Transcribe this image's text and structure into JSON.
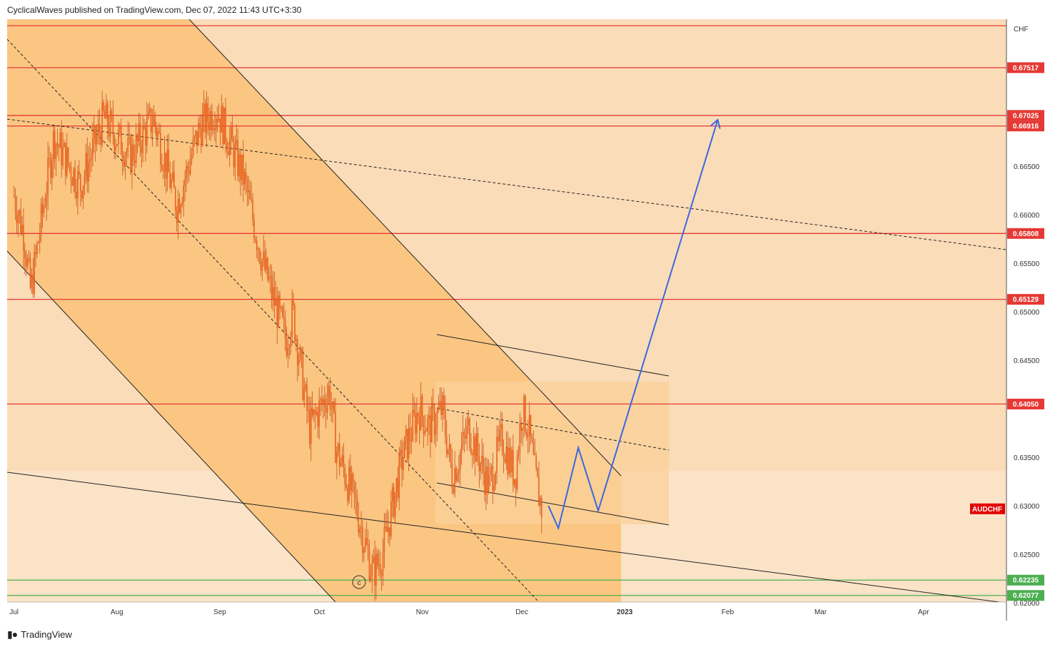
{
  "header": {
    "published_text": "CyclicalWaves published on TradingView.com, Dec 07, 2022 11:43 UTC+3:30"
  },
  "footer": {
    "brand_label": "TradingView",
    "logo_icon": "tradingview-logo-icon"
  },
  "colors": {
    "background": "#fbdcb8",
    "channel_fill": "#fbc682",
    "resistance": "#e53935",
    "support": "#4caf50",
    "projection": "#3a68e0",
    "candle": "#e8621e",
    "symbol_tag": "#e40000"
  },
  "chart_data": {
    "type": "candlestick",
    "symbol": "AUDCHF",
    "currency": "CHF",
    "y_axis": {
      "ticks": [
        "0.66500",
        "0.66000",
        "0.65500",
        "0.65000",
        "0.64500",
        "0.63500",
        "0.63000",
        "0.62500",
        "0.62000"
      ],
      "range": [
        0.6195,
        0.6795
      ]
    },
    "x_axis": {
      "ticks": [
        "Jul",
        "Aug",
        "Sep",
        "Oct",
        "Nov",
        "Dec",
        "2023",
        "Feb",
        "Mar",
        "Apr"
      ]
    },
    "horizontal_levels": [
      {
        "label": "",
        "value": 0.6795,
        "kind": "resistance"
      },
      {
        "label": "0.67517",
        "value": 0.67517,
        "kind": "resistance"
      },
      {
        "label": "0.67025",
        "value": 0.67025,
        "kind": "resistance"
      },
      {
        "label": "0.66916",
        "value": 0.66916,
        "kind": "resistance"
      },
      {
        "label": "0.65808",
        "value": 0.65808,
        "kind": "resistance"
      },
      {
        "label": "0.65129",
        "value": 0.65129,
        "kind": "resistance"
      },
      {
        "label": "0.64050",
        "value": 0.6405,
        "kind": "resistance"
      },
      {
        "label": "0.62235",
        "value": 0.62235,
        "kind": "support"
      },
      {
        "label": "0.62077",
        "value": 0.62077,
        "kind": "support"
      }
    ],
    "last_price_label": "AUDCHF",
    "last_price": 0.6297,
    "wave_marker": "c",
    "projection_path": [
      {
        "date": "2022-12-09",
        "price": 0.63
      },
      {
        "date": "2022-12-12",
        "price": 0.6277
      },
      {
        "date": "2022-12-18",
        "price": 0.636
      },
      {
        "date": "2022-12-24",
        "price": 0.6295
      },
      {
        "date": "2023-01-29",
        "price": 0.6698
      }
    ],
    "price_path": [
      {
        "date": "2022-07-01",
        "price": 0.662
      },
      {
        "date": "2022-07-04",
        "price": 0.658
      },
      {
        "date": "2022-07-06",
        "price": 0.652
      },
      {
        "date": "2022-07-13",
        "price": 0.668
      },
      {
        "date": "2022-07-21",
        "price": 0.663
      },
      {
        "date": "2022-07-28",
        "price": 0.67
      },
      {
        "date": "2022-08-05",
        "price": 0.666
      },
      {
        "date": "2022-08-12",
        "price": 0.67
      },
      {
        "date": "2022-08-19",
        "price": 0.661
      },
      {
        "date": "2022-08-26",
        "price": 0.669
      },
      {
        "date": "2022-08-31",
        "price": 0.671
      },
      {
        "date": "2022-09-08",
        "price": 0.664
      },
      {
        "date": "2022-09-14",
        "price": 0.655
      },
      {
        "date": "2022-09-21",
        "price": 0.647
      },
      {
        "date": "2022-09-23",
        "price": 0.65
      },
      {
        "date": "2022-09-28",
        "price": 0.638
      },
      {
        "date": "2022-10-04",
        "price": 0.642
      },
      {
        "date": "2022-10-06",
        "price": 0.636
      },
      {
        "date": "2022-10-12",
        "price": 0.63
      },
      {
        "date": "2022-10-17",
        "price": 0.623
      },
      {
        "date": "2022-10-20",
        "price": 0.625
      },
      {
        "date": "2022-10-26",
        "price": 0.635
      },
      {
        "date": "2022-10-31",
        "price": 0.64
      },
      {
        "date": "2022-11-03",
        "price": 0.638
      },
      {
        "date": "2022-11-07",
        "price": 0.64
      },
      {
        "date": "2022-11-10",
        "price": 0.633
      },
      {
        "date": "2022-11-15",
        "price": 0.638
      },
      {
        "date": "2022-11-21",
        "price": 0.632
      },
      {
        "date": "2022-11-25",
        "price": 0.637
      },
      {
        "date": "2022-11-29",
        "price": 0.633
      },
      {
        "date": "2022-12-01",
        "price": 0.64
      },
      {
        "date": "2022-12-03",
        "price": 0.638
      },
      {
        "date": "2022-12-05",
        "price": 0.633
      },
      {
        "date": "2022-12-07",
        "price": 0.6297
      }
    ]
  }
}
